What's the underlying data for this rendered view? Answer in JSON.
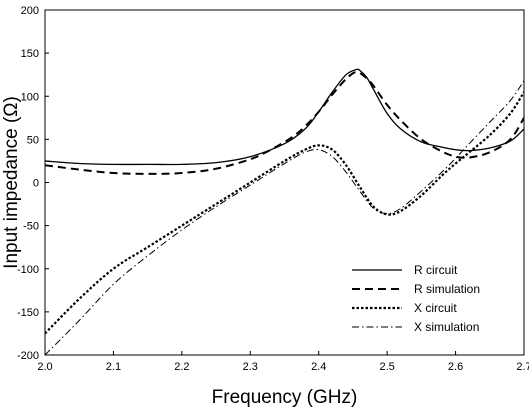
{
  "chart_data": {
    "type": "line",
    "xlabel": "Frequency (GHz)",
    "ylabel": "Input impedance (Ω)",
    "xlim": [
      2.0,
      2.7
    ],
    "ylim": [
      -200,
      200
    ],
    "xticks": [
      "2.0",
      "2.1",
      "2.2",
      "2.3",
      "2.4",
      "2.5",
      "2.6",
      "2.7"
    ],
    "yticks": [
      "200",
      "150",
      "100",
      "50",
      "0",
      "-50",
      "-100",
      "-150",
      "-200"
    ],
    "grid": false,
    "legend_position": "bottom-right",
    "series": [
      {
        "name": "R circuit",
        "style": "solid",
        "x": [
          2.0,
          2.05,
          2.1,
          2.15,
          2.2,
          2.25,
          2.3,
          2.35,
          2.38,
          2.4,
          2.42,
          2.44,
          2.455,
          2.46,
          2.47,
          2.48,
          2.5,
          2.52,
          2.55,
          2.58,
          2.6,
          2.62,
          2.65,
          2.68,
          2.7
        ],
        "values": [
          25,
          22,
          21,
          21,
          21,
          23,
          30,
          45,
          62,
          82,
          105,
          125,
          131,
          130,
          122,
          108,
          80,
          62,
          47,
          41,
          38,
          37,
          40,
          48,
          62
        ]
      },
      {
        "name": "R simulation",
        "style": "dashed",
        "x": [
          2.0,
          2.05,
          2.1,
          2.15,
          2.2,
          2.25,
          2.3,
          2.33,
          2.36,
          2.38,
          2.4,
          2.42,
          2.44,
          2.455,
          2.47,
          2.48,
          2.5,
          2.52,
          2.55,
          2.58,
          2.6,
          2.62,
          2.65,
          2.68,
          2.7
        ],
        "values": [
          20,
          15,
          11,
          10,
          11,
          16,
          27,
          38,
          52,
          65,
          82,
          102,
          120,
          128,
          121,
          112,
          90,
          72,
          50,
          36,
          30,
          29,
          35,
          50,
          75
        ]
      },
      {
        "name": "X circuit",
        "style": "dotted",
        "x": [
          2.0,
          2.05,
          2.1,
          2.15,
          2.2,
          2.25,
          2.3,
          2.35,
          2.38,
          2.4,
          2.42,
          2.44,
          2.46,
          2.48,
          2.5,
          2.52,
          2.55,
          2.58,
          2.6,
          2.62,
          2.65,
          2.68,
          2.7
        ],
        "values": [
          -175,
          -135,
          -100,
          -75,
          -50,
          -25,
          0,
          25,
          38,
          43,
          38,
          20,
          -5,
          -28,
          -37,
          -33,
          -15,
          8,
          22,
          35,
          55,
          80,
          105
        ]
      },
      {
        "name": "X simulation",
        "style": "dashdot",
        "x": [
          2.0,
          2.05,
          2.1,
          2.15,
          2.2,
          2.25,
          2.3,
          2.35,
          2.38,
          2.4,
          2.42,
          2.44,
          2.46,
          2.48,
          2.5,
          2.52,
          2.55,
          2.58,
          2.6,
          2.62,
          2.65,
          2.68,
          2.7
        ],
        "values": [
          -200,
          -160,
          -118,
          -85,
          -55,
          -28,
          -3,
          22,
          35,
          38,
          30,
          12,
          -10,
          -30,
          -36,
          -30,
          -10,
          12,
          28,
          45,
          70,
          95,
          118
        ]
      }
    ]
  }
}
